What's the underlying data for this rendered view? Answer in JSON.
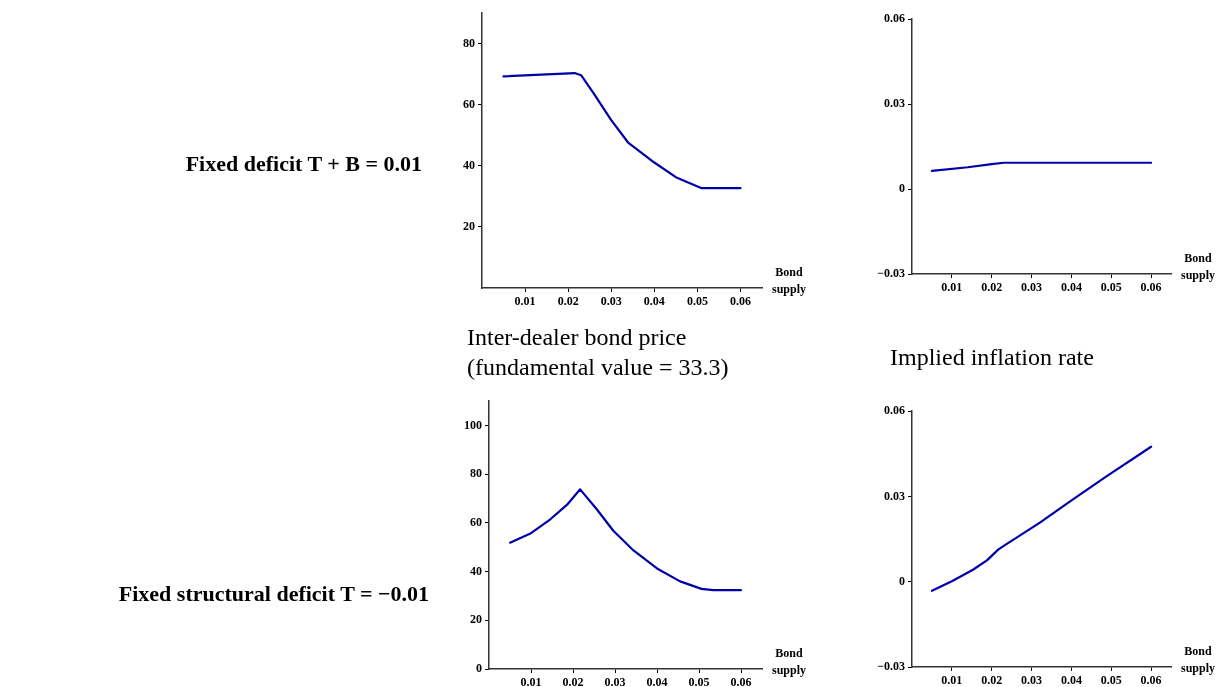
{
  "chart_data": [
    {
      "type": "line",
      "xlabel": "Bond supply",
      "annotations": [
        "Fixed deficit T + B = 0.01"
      ],
      "xlim": [
        0,
        0.065
      ],
      "ylim": [
        0,
        90
      ],
      "xticks": [
        0.01,
        0.02,
        0.03,
        0.04,
        0.05,
        0.06
      ],
      "yticks": [
        20,
        40,
        60,
        80
      ],
      "marker": "none",
      "series": [
        {
          "color": "#0000a8",
          "x": [
            0.005,
            0.0215,
            0.023,
            0.026,
            0.03,
            0.034,
            0.04,
            0.045,
            0.051,
            0.06
          ],
          "values": [
            69.3,
            70.4,
            69.7,
            63.6,
            55.0,
            47.5,
            41.1,
            36.3,
            32.7,
            32.7
          ]
        }
      ]
    },
    {
      "type": "line",
      "xlabel": "Bond supply",
      "xlim": [
        0,
        0.065
      ],
      "ylim": [
        -0.03,
        0.06
      ],
      "xticks": [
        0.01,
        0.02,
        0.03,
        0.04,
        0.05,
        0.06
      ],
      "yticks": [
        {
          "value": -0.03,
          "label": "−0.03"
        },
        0,
        0.03,
        0.06
      ],
      "marker": "none",
      "series": [
        {
          "color": "#0000a8",
          "x": [
            0.005,
            0.014,
            0.02,
            0.023,
            0.06
          ],
          "values": [
            0.0064,
            0.0077,
            0.0088,
            0.0093,
            0.0093
          ]
        }
      ]
    },
    {
      "type": "line",
      "title": "Inter-dealer bond price (fundamental value = 33.3)",
      "xlabel": "Bond supply",
      "annotations": [
        "Fixed structural deficit T = −0.01"
      ],
      "xlim": [
        0,
        0.065
      ],
      "ylim": [
        0,
        110
      ],
      "xticks": [
        0.01,
        0.02,
        0.03,
        0.04,
        0.05,
        0.06
      ],
      "yticks": [
        0,
        20,
        40,
        60,
        80,
        100
      ],
      "marker": "none",
      "series": [
        {
          "color": "#0000a8",
          "x": [
            0.005,
            0.01,
            0.0146,
            0.0186,
            0.0217,
            0.0257,
            0.0296,
            0.0344,
            0.04,
            0.0455,
            0.0506,
            0.0534,
            0.06
          ],
          "values": [
            51.9,
            55.8,
            61.5,
            67.5,
            73.8,
            65.5,
            56.8,
            48.7,
            41.3,
            36.0,
            32.9,
            32.4,
            32.4
          ]
        }
      ]
    },
    {
      "type": "line",
      "title": "Implied inflation rate",
      "xlabel": "Bond supply",
      "xlim": [
        0,
        0.065
      ],
      "ylim": [
        -0.03,
        0.06
      ],
      "xticks": [
        0.01,
        0.02,
        0.03,
        0.04,
        0.05,
        0.06
      ],
      "yticks": [
        {
          "value": -0.03,
          "label": "−0.03"
        },
        0,
        0.03,
        0.06
      ],
      "marker": "none",
      "series": [
        {
          "color": "#0000a8",
          "x": [
            0.005,
            0.01,
            0.0154,
            0.0188,
            0.0217,
            0.0238,
            0.0321,
            0.0404,
            0.0488,
            0.06
          ],
          "values": [
            -0.0032,
            0.0002,
            0.0043,
            0.0075,
            0.0114,
            0.0133,
            0.0208,
            0.029,
            0.0371,
            0.0475
          ]
        }
      ]
    }
  ]
}
